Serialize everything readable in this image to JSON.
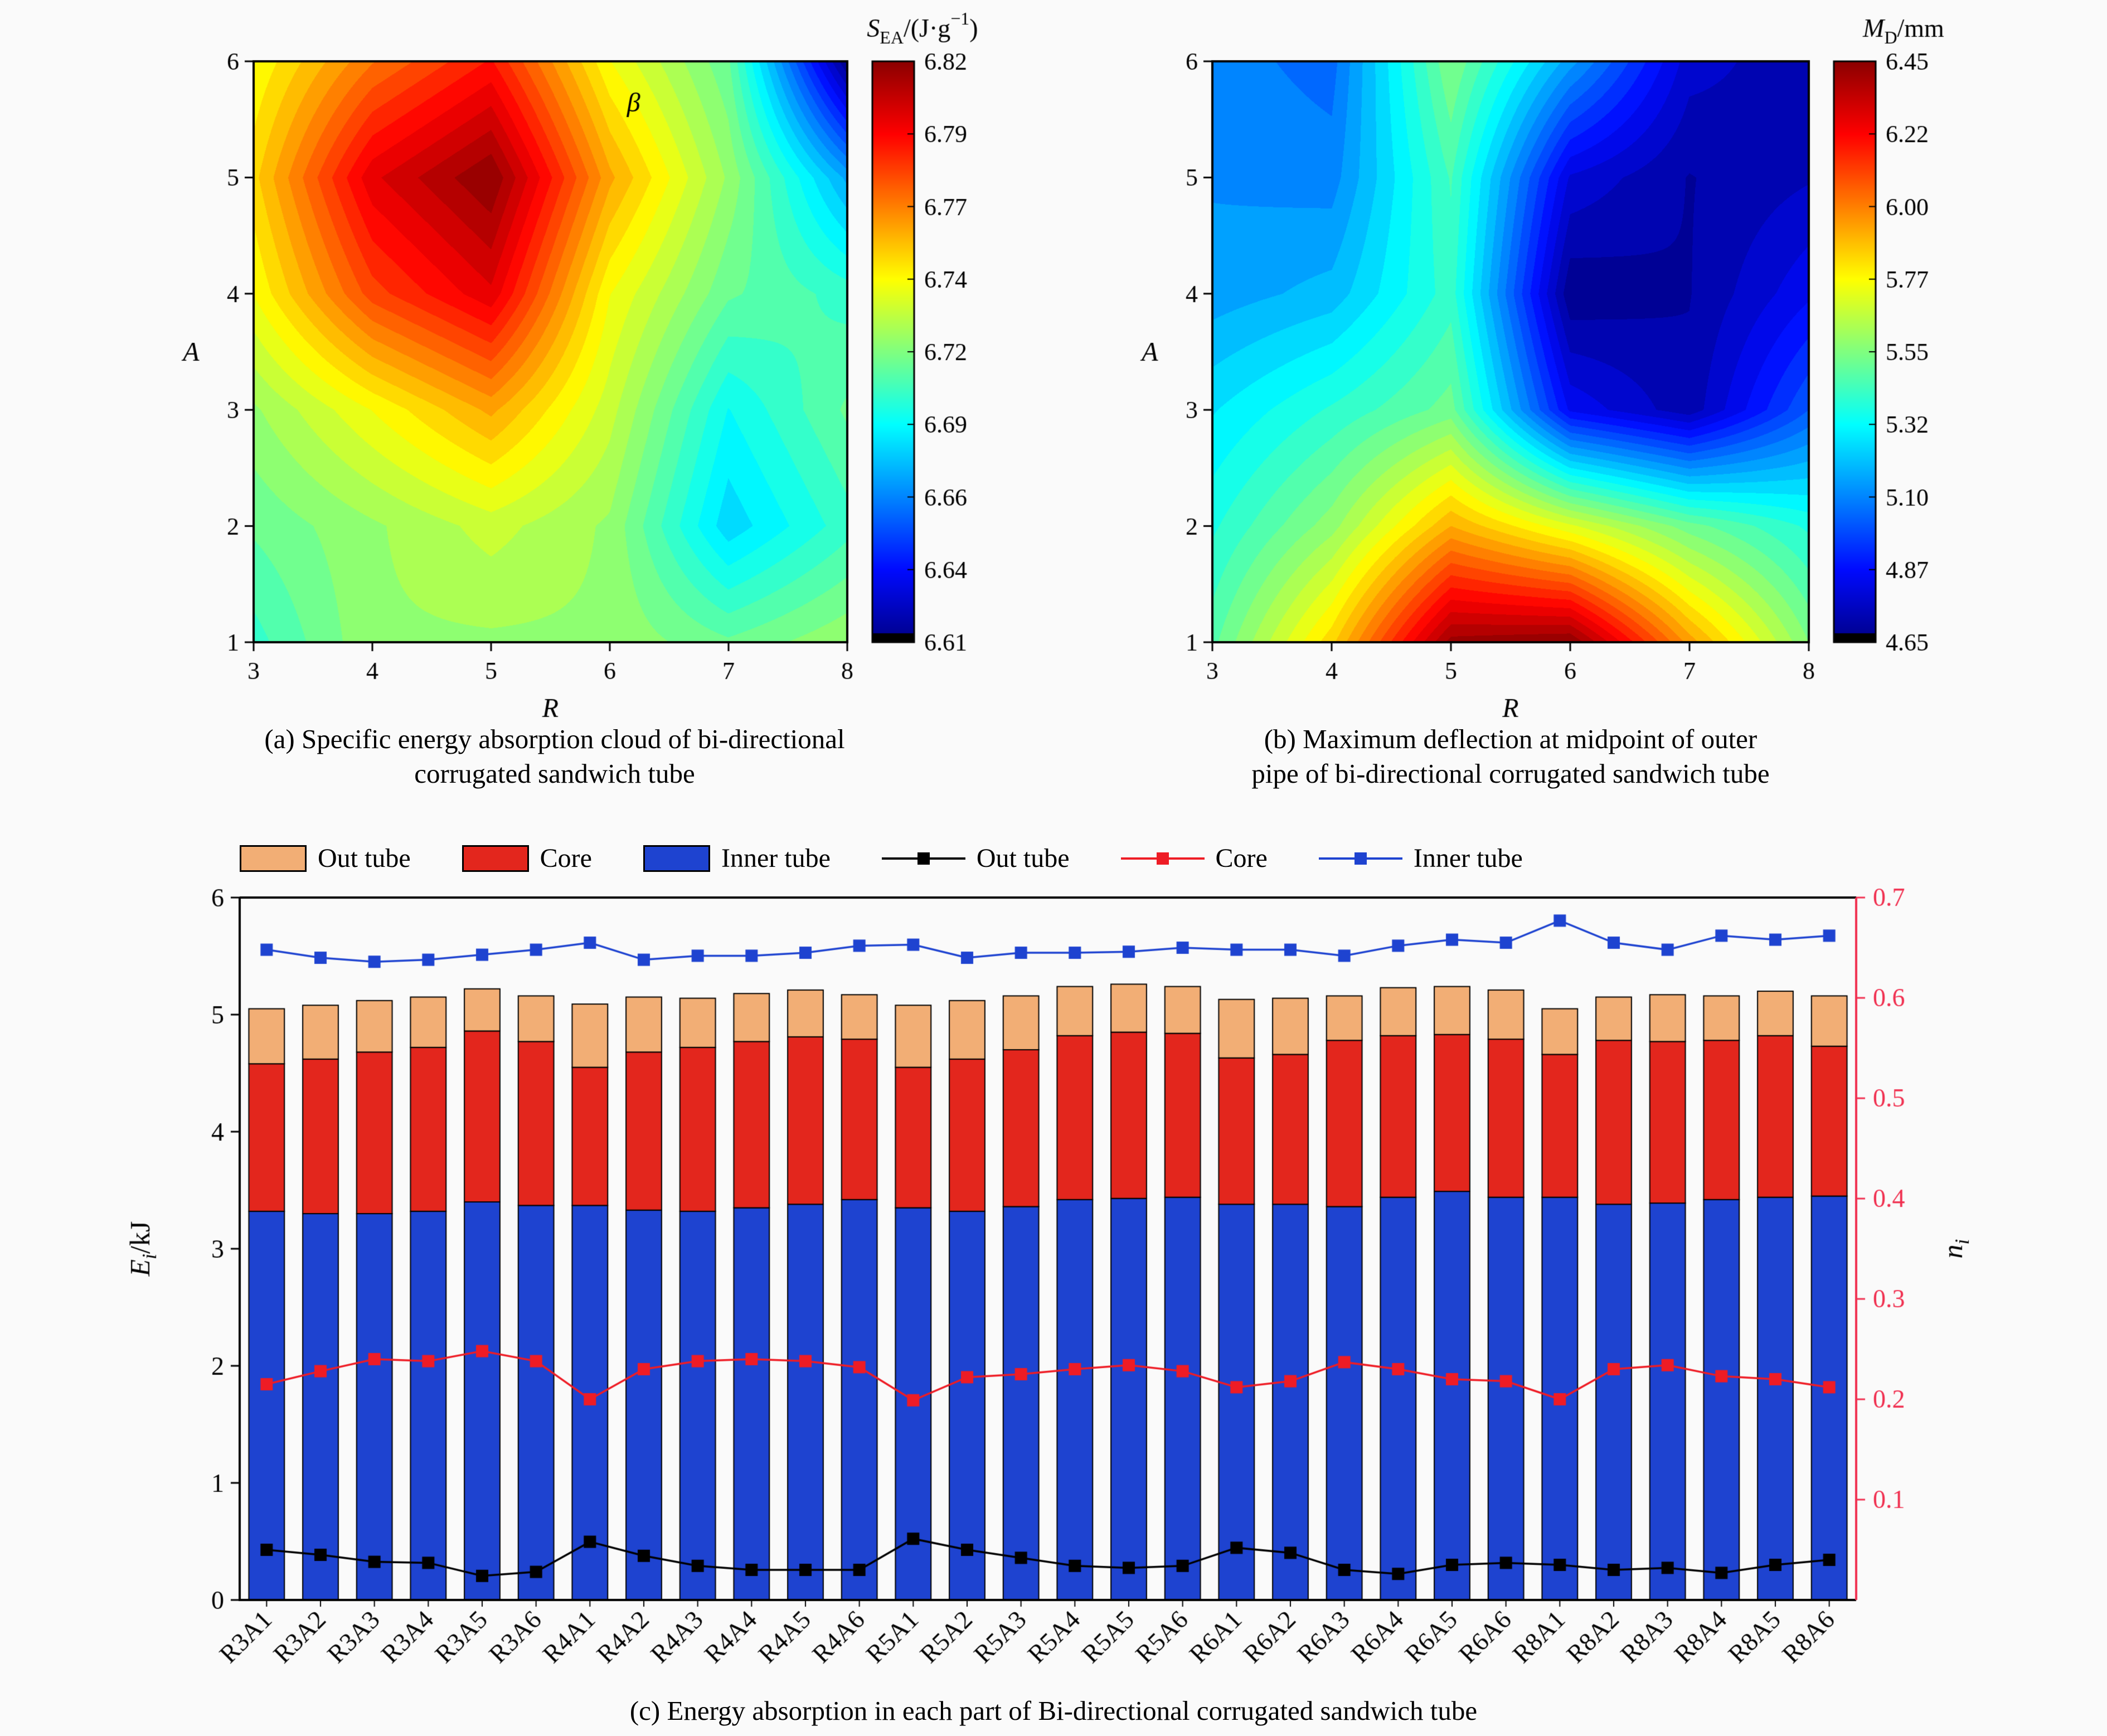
{
  "page": {
    "background": "#fafafa"
  },
  "chart_data": [
    {
      "id": "panel-a",
      "type": "heatmap",
      "caption_line1": "(a) Specific energy absorption cloud of bi-directional",
      "caption_line2": "corrugated sandwich tube",
      "xlabel": "R",
      "ylabel": "A",
      "xticks": [
        3,
        4,
        5,
        6,
        7,
        8
      ],
      "yticks": [
        1,
        2,
        3,
        4,
        5,
        6
      ],
      "x_range": [
        3,
        8
      ],
      "y_range": [
        1,
        6
      ],
      "zmin": 6.61,
      "zmax": 6.82,
      "colorbar_label": {
        "sym": "S",
        "sub": "EA",
        "unit_pre": "/(J·g",
        "sup": "−1",
        "unit_post": ")"
      },
      "colorbar_ticks": [
        "6.82",
        "6.79",
        "6.77",
        "6.74",
        "6.72",
        "6.69",
        "6.66",
        "6.64",
        "6.61"
      ],
      "annotation": {
        "text": "β",
        "fx": 0.64,
        "fy": 0.05
      },
      "grid_rows_top_to_bottom": [
        [
          6.74,
          6.77,
          6.79,
          6.74,
          6.71,
          6.61
        ],
        [
          6.75,
          6.8,
          6.82,
          6.76,
          6.72,
          6.67
        ],
        [
          6.74,
          6.78,
          6.8,
          6.74,
          6.71,
          6.7
        ],
        [
          6.72,
          6.74,
          6.76,
          6.73,
          6.69,
          6.71
        ],
        [
          6.71,
          6.72,
          6.73,
          6.72,
          6.68,
          6.7
        ],
        [
          6.7,
          6.72,
          6.72,
          6.72,
          6.71,
          6.72
        ]
      ]
    },
    {
      "id": "panel-b",
      "type": "heatmap",
      "caption_line1": "(b) Maximum deflection at midpoint of outer",
      "caption_line2": "pipe of bi-directional corrugated sandwich tube",
      "xlabel": "R",
      "ylabel": "A",
      "xticks": [
        3,
        4,
        5,
        6,
        7,
        8
      ],
      "yticks": [
        1,
        2,
        3,
        4,
        5,
        6
      ],
      "x_range": [
        3,
        8
      ],
      "y_range": [
        1,
        6
      ],
      "zmin": 4.65,
      "zmax": 6.45,
      "colorbar_label": {
        "sym": "M",
        "sub": "D",
        "unit_pre": "/mm",
        "sup": "",
        "unit_post": ""
      },
      "colorbar_ticks": [
        "6.45",
        "6.22",
        "6.00",
        "5.77",
        "5.55",
        "5.32",
        "5.10",
        "4.87",
        "4.65"
      ],
      "annotation": null,
      "grid_rows_top_to_bottom": [
        [
          5.1,
          5.05,
          5.55,
          5.15,
          4.78,
          4.72
        ],
        [
          5.12,
          5.1,
          5.45,
          4.8,
          4.7,
          4.75
        ],
        [
          5.15,
          5.2,
          5.42,
          4.66,
          4.7,
          4.85
        ],
        [
          5.28,
          5.4,
          5.52,
          4.85,
          4.72,
          5.02
        ],
        [
          5.38,
          5.58,
          5.92,
          5.72,
          5.52,
          5.38
        ],
        [
          5.48,
          5.85,
          6.42,
          6.45,
          5.95,
          5.55
        ]
      ]
    },
    {
      "id": "panel-c",
      "type": "bar",
      "caption": "(c)  Energy absorption in each part of Bi-directional corrugated sandwich tube",
      "categories": [
        "R3A1",
        "R3A2",
        "R3A3",
        "R3A4",
        "R3A5",
        "R3A6",
        "R4A1",
        "R4A2",
        "R4A3",
        "R4A4",
        "R4A5",
        "R4A6",
        "R5A1",
        "R5A2",
        "R5A3",
        "R5A4",
        "R5A5",
        "R5A6",
        "R6A1",
        "R6A2",
        "R6A3",
        "R6A4",
        "R6A5",
        "R6A6",
        "R8A1",
        "R8A2",
        "R8A3",
        "R8A4",
        "R8A5",
        "R8A6"
      ],
      "bar_series": [
        {
          "name": "Inner tube",
          "color": "#1e43d0",
          "values": [
            3.32,
            3.3,
            3.3,
            3.32,
            3.4,
            3.37,
            3.37,
            3.33,
            3.32,
            3.35,
            3.38,
            3.42,
            3.35,
            3.32,
            3.36,
            3.42,
            3.43,
            3.44,
            3.38,
            3.38,
            3.36,
            3.44,
            3.49,
            3.44,
            3.44,
            3.38,
            3.39,
            3.42,
            3.44,
            3.45
          ]
        },
        {
          "name": "Core",
          "color": "#e3261d",
          "values": [
            1.26,
            1.32,
            1.38,
            1.4,
            1.46,
            1.4,
            1.18,
            1.35,
            1.4,
            1.42,
            1.43,
            1.37,
            1.2,
            1.3,
            1.34,
            1.4,
            1.42,
            1.4,
            1.25,
            1.28,
            1.42,
            1.38,
            1.34,
            1.35,
            1.22,
            1.4,
            1.38,
            1.36,
            1.38,
            1.28
          ]
        },
        {
          "name": "Out tube",
          "color": "#f2ae75",
          "values": [
            0.47,
            0.46,
            0.44,
            0.43,
            0.36,
            0.39,
            0.54,
            0.47,
            0.42,
            0.41,
            0.4,
            0.38,
            0.53,
            0.5,
            0.46,
            0.42,
            0.41,
            0.4,
            0.5,
            0.48,
            0.38,
            0.41,
            0.41,
            0.42,
            0.39,
            0.37,
            0.4,
            0.38,
            0.38,
            0.43
          ]
        }
      ],
      "line_series": [
        {
          "name": "Out tube",
          "color": "#000000",
          "values": [
            0.05,
            0.045,
            0.038,
            0.037,
            0.024,
            0.028,
            0.058,
            0.044,
            0.034,
            0.03,
            0.03,
            0.03,
            0.061,
            0.05,
            0.042,
            0.034,
            0.032,
            0.034,
            0.052,
            0.047,
            0.03,
            0.026,
            0.035,
            0.037,
            0.035,
            0.03,
            0.032,
            0.027,
            0.035,
            0.04
          ]
        },
        {
          "name": "Core",
          "color": "#ee1c25",
          "values": [
            0.215,
            0.228,
            0.24,
            0.238,
            0.248,
            0.238,
            0.2,
            0.23,
            0.238,
            0.24,
            0.238,
            0.232,
            0.199,
            0.222,
            0.225,
            0.23,
            0.234,
            0.228,
            0.212,
            0.218,
            0.237,
            0.23,
            0.22,
            0.218,
            0.2,
            0.23,
            0.234,
            0.223,
            0.22,
            0.212
          ]
        },
        {
          "name": "Inner tube",
          "color": "#1e43d0",
          "values": [
            0.648,
            0.64,
            0.636,
            0.638,
            0.643,
            0.648,
            0.655,
            0.638,
            0.642,
            0.642,
            0.645,
            0.652,
            0.653,
            0.64,
            0.645,
            0.645,
            0.646,
            0.65,
            0.648,
            0.648,
            0.642,
            0.652,
            0.658,
            0.655,
            0.677,
            0.655,
            0.648,
            0.662,
            0.658,
            0.662
          ]
        }
      ],
      "ylabel": {
        "sym": "E",
        "sub": "i",
        "rest": "/kJ"
      },
      "y2label": {
        "sym": "n",
        "sub": "i",
        "rest": ""
      },
      "ylim": [
        0,
        6
      ],
      "y2lim": [
        0,
        0.7
      ],
      "yticks": [
        0,
        1,
        2,
        3,
        4,
        5,
        6
      ],
      "y2ticks": [
        "0.1",
        "0.2",
        "0.3",
        "0.4",
        "0.5",
        "0.6",
        "0.7"
      ],
      "y2color": "#f03050",
      "legend_position": "top"
    }
  ]
}
